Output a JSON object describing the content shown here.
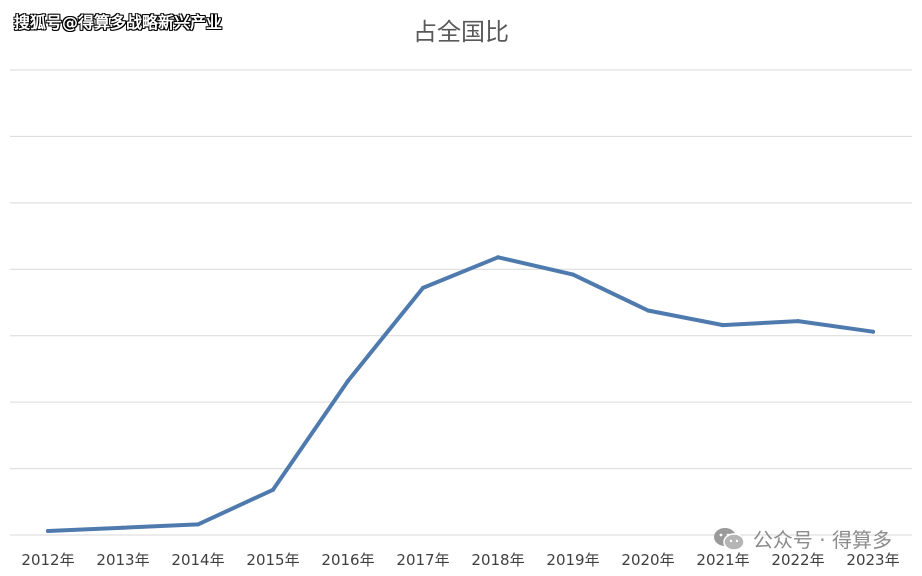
{
  "watermark_top": "搜狐号@得算多战略新兴产业",
  "watermark_bottom": "公众号 · 得算多",
  "colors": {
    "line": "#4F7AAE",
    "grid": "#D9D9D9"
  },
  "chart_data": {
    "type": "line",
    "title": "占全国比",
    "xlabel": "",
    "ylabel": "",
    "categories": [
      "2012年",
      "2013年",
      "2014年",
      "2015年",
      "2016年",
      "2017年",
      "2018年",
      "2019年",
      "2020年",
      "2021年",
      "2022年",
      "2023年"
    ],
    "series": [
      {
        "values": [
          0.3,
          0.55,
          0.8,
          3.4,
          11.6,
          18.6,
          20.9,
          19.6,
          16.9,
          15.8,
          16.1,
          15.3
        ]
      }
    ],
    "ylim": [
      0,
      35
    ],
    "grid": true,
    "legend": "none"
  }
}
